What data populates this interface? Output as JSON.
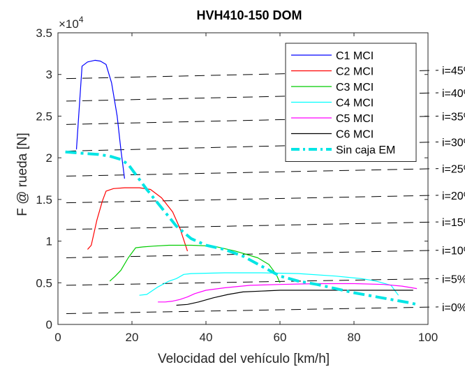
{
  "chart_data": {
    "type": "line",
    "title": "HVH410-150 DOM",
    "xlabel": "Velocidad del vehículo [km/h]",
    "ylabel": "F @ rueda [N]",
    "y_multiplier_label": "×10",
    "y_multiplier_exp": "4",
    "xlim": [
      0,
      100
    ],
    "ylim": [
      0,
      3.5
    ],
    "x_ticks": [
      "0",
      "20",
      "40",
      "60",
      "80",
      "100"
    ],
    "y_ticks": [
      "0",
      "0.5",
      "1",
      "1.5",
      "2",
      "2.5",
      "3",
      "3.5"
    ],
    "legend_position": "top-right",
    "series": [
      {
        "name": "C1 MCI",
        "color": "#0000ff",
        "style": "solid",
        "x": [
          5,
          6.5,
          8,
          10,
          11.5,
          13,
          14.5,
          16,
          17,
          18
        ],
        "y": [
          2.1,
          3.1,
          3.15,
          3.17,
          3.16,
          3.12,
          2.9,
          2.5,
          2.1,
          1.75
        ]
      },
      {
        "name": "C2 MCI",
        "color": "#ff0000",
        "style": "solid",
        "x": [
          8,
          9,
          10.5,
          12,
          13,
          15,
          18,
          22,
          25,
          28,
          31,
          33,
          35
        ],
        "y": [
          0.9,
          0.95,
          1.25,
          1.48,
          1.6,
          1.63,
          1.64,
          1.64,
          1.62,
          1.52,
          1.35,
          1.15,
          0.88
        ]
      },
      {
        "name": "C3 MCI",
        "color": "#00cc00",
        "style": "solid",
        "x": [
          14,
          15.5,
          17,
          19,
          21,
          23,
          26,
          30,
          36,
          42,
          48,
          54,
          57,
          59,
          60
        ],
        "y": [
          0.52,
          0.58,
          0.65,
          0.8,
          0.92,
          0.93,
          0.94,
          0.95,
          0.95,
          0.94,
          0.88,
          0.8,
          0.72,
          0.6,
          0.5
        ]
      },
      {
        "name": "C4 MCI",
        "color": "#00ffff",
        "style": "solid",
        "x": [
          22,
          24,
          27,
          30,
          32,
          34,
          36,
          45,
          55,
          65,
          75,
          82,
          86,
          90,
          92
        ],
        "y": [
          0.35,
          0.36,
          0.45,
          0.52,
          0.55,
          0.6,
          0.61,
          0.62,
          0.62,
          0.61,
          0.58,
          0.55,
          0.52,
          0.47,
          0.35
        ]
      },
      {
        "name": "C5 MCI",
        "color": "#ff00ff",
        "style": "solid",
        "x": [
          27,
          29,
          31,
          33,
          35,
          37,
          40,
          45,
          52,
          60,
          70,
          80,
          88,
          93,
          97
        ],
        "y": [
          0.27,
          0.27,
          0.28,
          0.3,
          0.33,
          0.37,
          0.41,
          0.44,
          0.47,
          0.48,
          0.49,
          0.49,
          0.48,
          0.46,
          0.43
        ]
      },
      {
        "name": "C6 MCI",
        "color": "#000000",
        "style": "solid",
        "x": [
          32,
          35,
          38,
          42,
          46,
          50,
          55,
          60,
          66,
          72,
          78,
          84,
          90,
          96
        ],
        "y": [
          0.23,
          0.24,
          0.27,
          0.32,
          0.36,
          0.39,
          0.4,
          0.41,
          0.41,
          0.41,
          0.41,
          0.41,
          0.41,
          0.41
        ]
      },
      {
        "name": "Sin caja EM",
        "color": "#00e5e5",
        "style": "dashdot",
        "x": [
          2,
          5,
          8,
          11,
          14,
          17,
          19,
          21,
          24,
          28,
          32,
          36,
          40,
          45,
          50,
          55,
          60,
          65,
          70,
          75,
          80,
          85,
          90,
          95,
          97
        ],
        "y": [
          2.07,
          2.06,
          2.05,
          2.04,
          2.02,
          1.98,
          1.92,
          1.8,
          1.62,
          1.4,
          1.18,
          1.03,
          0.95,
          0.9,
          0.82,
          0.7,
          0.58,
          0.52,
          0.48,
          0.43,
          0.38,
          0.34,
          0.3,
          0.26,
          0.24
        ]
      }
    ],
    "grade_lines": [
      {
        "label": "i=45%",
        "y_start": 2.95,
        "y_end": 3.05
      },
      {
        "label": "i=40%",
        "y_start": 2.68,
        "y_end": 2.78
      },
      {
        "label": "i=35%",
        "y_start": 2.4,
        "y_end": 2.5
      },
      {
        "label": "i=30%",
        "y_start": 2.08,
        "y_end": 2.19
      },
      {
        "label": "i=25%",
        "y_start": 1.78,
        "y_end": 1.87
      },
      {
        "label": "i=20%",
        "y_start": 1.46,
        "y_end": 1.55
      },
      {
        "label": "i=15%",
        "y_start": 1.14,
        "y_end": 1.23
      },
      {
        "label": "i=10%",
        "y_start": 0.8,
        "y_end": 0.89
      },
      {
        "label": "i=5%",
        "y_start": 0.47,
        "y_end": 0.55
      },
      {
        "label": "i=0%",
        "y_start": 0.13,
        "y_end": 0.21
      }
    ]
  }
}
